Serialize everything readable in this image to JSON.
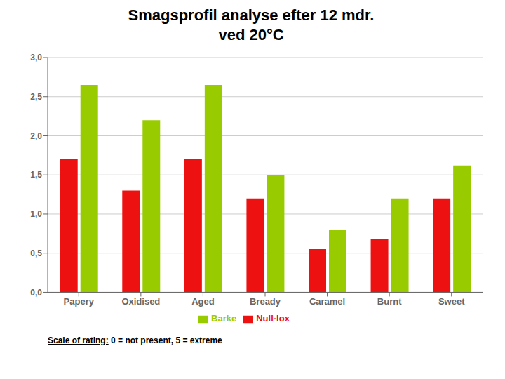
{
  "chart_data": {
    "type": "bar",
    "title": "Smagsprofil analyse efter 12 mdr.",
    "subtitle": "ved 20°C",
    "categories": [
      "Papery",
      "Oxidised",
      "Aged",
      "Bready",
      "Caramel",
      "Burnt",
      "Sweet"
    ],
    "series": [
      {
        "name": "Null-lox",
        "color": "#EE1111",
        "values": [
          1.7,
          1.3,
          1.7,
          1.2,
          0.55,
          0.68,
          1.2
        ]
      },
      {
        "name": "Barke",
        "color": "#99CC00",
        "values": [
          2.65,
          2.2,
          2.65,
          1.5,
          0.8,
          1.2,
          1.62
        ]
      }
    ],
    "ylim": [
      0,
      3.0
    ],
    "yticks": [
      {
        "value": 0.0,
        "label": "0,0"
      },
      {
        "value": 0.5,
        "label": "0,5"
      },
      {
        "value": 1.0,
        "label": "1,0"
      },
      {
        "value": 1.5,
        "label": "1,5"
      },
      {
        "value": 2.0,
        "label": "2,0"
      },
      {
        "value": 2.5,
        "label": "2,5"
      },
      {
        "value": 3.0,
        "label": "3,0"
      }
    ],
    "grid": true,
    "legend": "bottom",
    "annotations": [
      "Scale of rating:",
      "0 = not present, 5 = extreme"
    ]
  }
}
